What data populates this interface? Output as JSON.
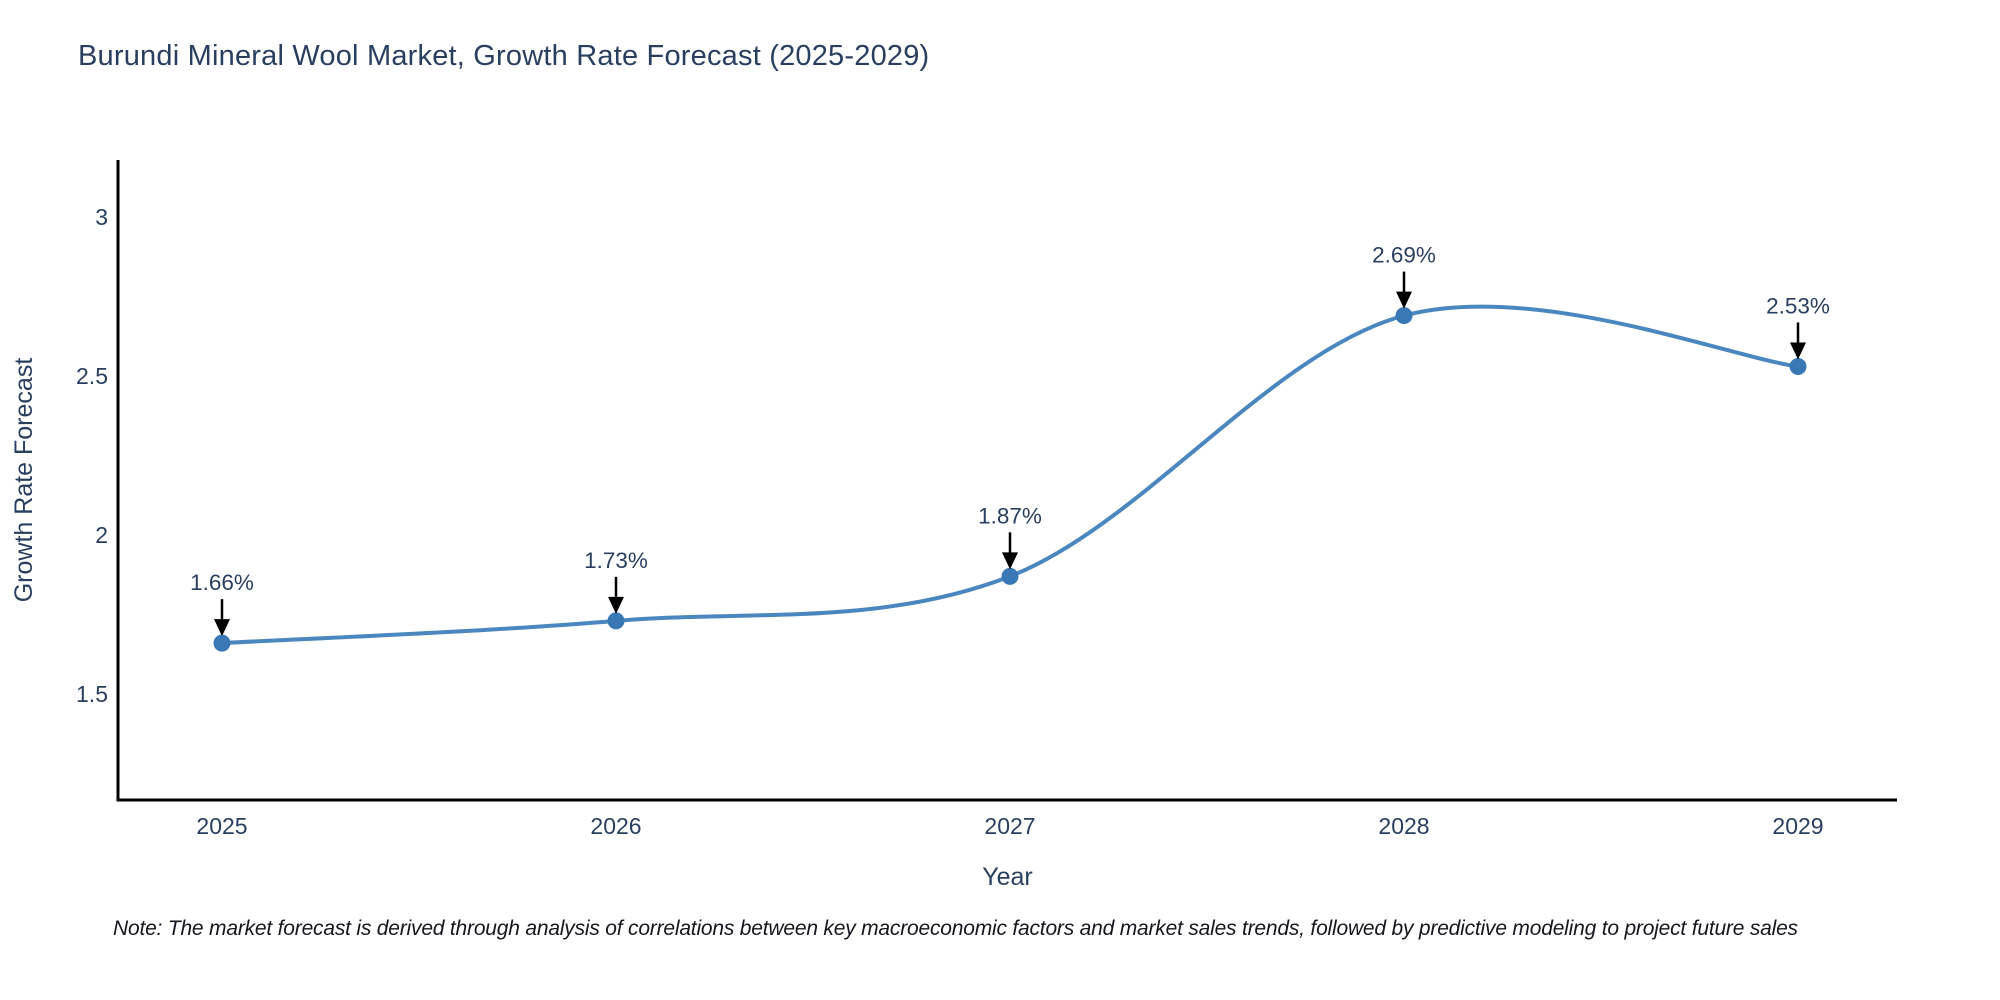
{
  "chart_data": {
    "type": "line",
    "title": "Burundi Mineral Wool Market, Growth Rate Forecast (2025-2029)",
    "xlabel": "Year",
    "ylabel": "Growth Rate Forecast",
    "x": [
      2025,
      2026,
      2027,
      2028,
      2029
    ],
    "series": [
      {
        "name": "Growth Rate Forecast",
        "values": [
          1.66,
          1.73,
          1.87,
          2.69,
          2.53
        ]
      }
    ],
    "point_labels": [
      "1.66%",
      "1.73%",
      "1.87%",
      "2.69%",
      "2.53%"
    ],
    "x_tick_labels": [
      "2025",
      "2026",
      "2027",
      "2028",
      "2029"
    ],
    "y_tick_values": [
      1.5,
      2,
      2.5,
      3
    ],
    "y_tick_labels": [
      "1.5",
      "2",
      "2.5",
      "3"
    ],
    "ylim": [
      1.17,
      3.18
    ],
    "grid": false,
    "legend": false,
    "line_shape": "spline",
    "colors": {
      "line": "#4a87bf",
      "marker": "#3a78b5",
      "arrow": "#000000",
      "axis": "#000000",
      "text": "#2a3f5f"
    }
  },
  "footnote": {
    "text": "Note: The market forecast is derived through analysis of correlations between key macroeconomic factors and market sales trends, followed by predictive modeling to project future sales"
  }
}
